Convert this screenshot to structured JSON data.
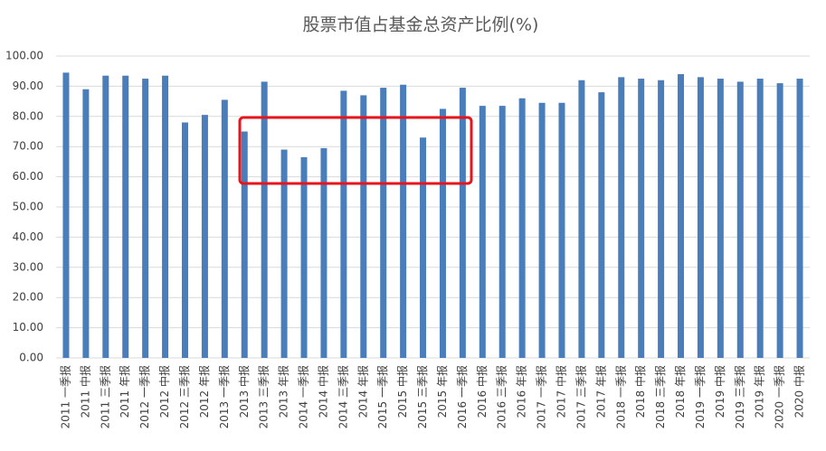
{
  "chart_data": {
    "type": "bar",
    "title": "股票市值占基金总资产比例(%)",
    "categories": [
      "2011 一季报",
      "2011 中报",
      "2011 三季报",
      "2011 年报",
      "2012 一季报",
      "2012 中报",
      "2012 三季报",
      "2012 年报",
      "2013 一季报",
      "2013 中报",
      "2013 三季报",
      "2013 年报",
      "2014 一季报",
      "2014 中报",
      "2014 三季报",
      "2014 年报",
      "2015 一季报",
      "2015 中报",
      "2015 三季报",
      "2015 年报",
      "2016 一季报",
      "2016 中报",
      "2016 三季报",
      "2016 年报",
      "2017 一季报",
      "2017 中报",
      "2017 三季报",
      "2017 年报",
      "2018 一季报",
      "2018 中报",
      "2018 三季报",
      "2018 年报",
      "2019 一季报",
      "2019 中报",
      "2019 三季报",
      "2019 年报",
      "2020 一季报",
      "2020 中报"
    ],
    "values": [
      94.5,
      89,
      93.5,
      93.5,
      92.5,
      93.5,
      78,
      80.5,
      85.5,
      75,
      91.5,
      69,
      66.5,
      69.5,
      88.5,
      87,
      89.5,
      90.5,
      73,
      82.5,
      89.5,
      83.5,
      83.5,
      86,
      84.5,
      84.5,
      92,
      88,
      93,
      92.5,
      92,
      94,
      93,
      92.5,
      91.5,
      92.5,
      91,
      92.5
    ],
    "color": "#4a7ebb",
    "ylim": [
      0,
      100
    ],
    "yticks": [
      {
        "value": 0,
        "label": "0.00"
      },
      {
        "value": 10,
        "label": "10.00"
      },
      {
        "value": 20,
        "label": "20.00"
      },
      {
        "value": 30,
        "label": "30.00"
      },
      {
        "value": 40,
        "label": "40.00"
      },
      {
        "value": 50,
        "label": "50.00"
      },
      {
        "value": 60,
        "label": "60.00"
      },
      {
        "value": 70,
        "label": "70.00"
      },
      {
        "value": 80,
        "label": "80.00"
      },
      {
        "value": 90,
        "label": "90.00"
      },
      {
        "value": 100,
        "label": "100.00"
      }
    ],
    "grid": true
  }
}
